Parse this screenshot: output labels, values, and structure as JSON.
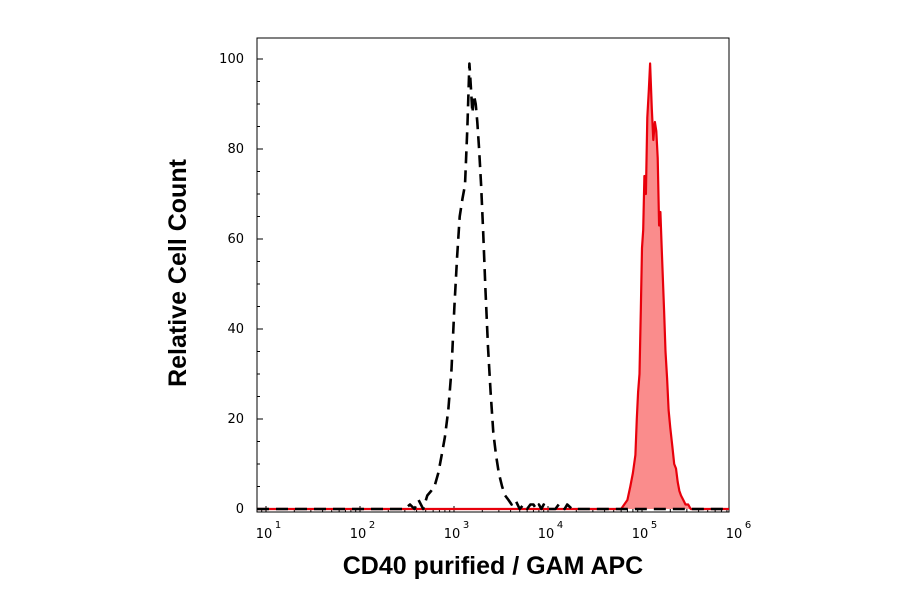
{
  "chart_data": {
    "type": "area",
    "xlabel": "CD40 purified / GAM APC",
    "ylabel": "Relative Cell Count",
    "x_scale": "log",
    "xlim": [
      10,
      1000000
    ],
    "ylim": [
      0,
      100
    ],
    "x_tick_labels": [
      {
        "base": "10",
        "exp": "1",
        "value": 10
      },
      {
        "base": "10",
        "exp": "2",
        "value": 100
      },
      {
        "base": "10",
        "exp": "3",
        "value": 1000
      },
      {
        "base": "10",
        "exp": "4",
        "value": 10000
      },
      {
        "base": "10",
        "exp": "5",
        "value": 100000
      },
      {
        "base": "10",
        "exp": "6",
        "value": 1000000
      }
    ],
    "y_ticks": [
      0,
      20,
      40,
      60,
      80,
      100
    ],
    "grid": false,
    "legend": "none",
    "series": [
      {
        "style": "dashed",
        "color": "#000000",
        "fill": "none",
        "x": [
          6,
          300,
          340,
          380,
          420,
          470,
          520,
          570,
          620,
          680,
          740,
          800,
          870,
          940,
          1010,
          1080,
          1150,
          1230,
          1310,
          1390,
          1460,
          1510,
          1570,
          1630,
          1700,
          1770,
          1850,
          1940,
          2040,
          2160,
          2300,
          2450,
          2620,
          2800,
          3000,
          3250,
          3500,
          3800,
          4100,
          4500,
          5000,
          5500,
          6000,
          6500,
          7000,
          7500,
          8000,
          8500,
          9000,
          9500,
          10000,
          11000,
          12000,
          13000,
          14000,
          15000,
          16000,
          18000,
          20000,
          1000000
        ],
        "y": [
          0,
          0,
          1,
          0,
          2,
          0,
          3,
          4,
          5,
          8,
          12,
          16,
          22,
          31,
          45,
          56,
          65,
          69,
          72,
          85,
          99,
          94,
          88,
          92,
          90,
          86,
          80,
          72,
          62,
          49,
          36,
          26,
          17,
          12,
          8,
          5,
          3,
          2,
          1,
          2,
          0,
          1,
          0,
          1,
          1,
          0,
          1,
          0,
          1,
          0,
          0,
          0,
          0,
          1,
          1,
          0,
          1,
          0,
          0,
          0
        ]
      },
      {
        "style": "solid",
        "color": "#e8000b",
        "fill": "#fa8c8c",
        "x": [
          6,
          60000,
          70000,
          75000,
          80000,
          85000,
          88000,
          91000,
          94000,
          97000,
          100000,
          103000,
          106000,
          110000,
          114000,
          118000,
          122000,
          127000,
          132000,
          137000,
          142000,
          147000,
          152000,
          157000,
          162000,
          167000,
          172000,
          178000,
          185000,
          192000,
          200000,
          210000,
          220000,
          230000,
          240000,
          250000,
          260000,
          275000,
          290000,
          310000,
          330000,
          360000,
          1000000
        ],
        "y": [
          0,
          0,
          2,
          5,
          8,
          12,
          20,
          26,
          30,
          44,
          58,
          62,
          74,
          70,
          87,
          93,
          99,
          89,
          82,
          86,
          84,
          78,
          63,
          66,
          58,
          51,
          44,
          35,
          29,
          22,
          18,
          14,
          10,
          9,
          6,
          4,
          3,
          2,
          1,
          1,
          0,
          0,
          0
        ]
      }
    ]
  }
}
